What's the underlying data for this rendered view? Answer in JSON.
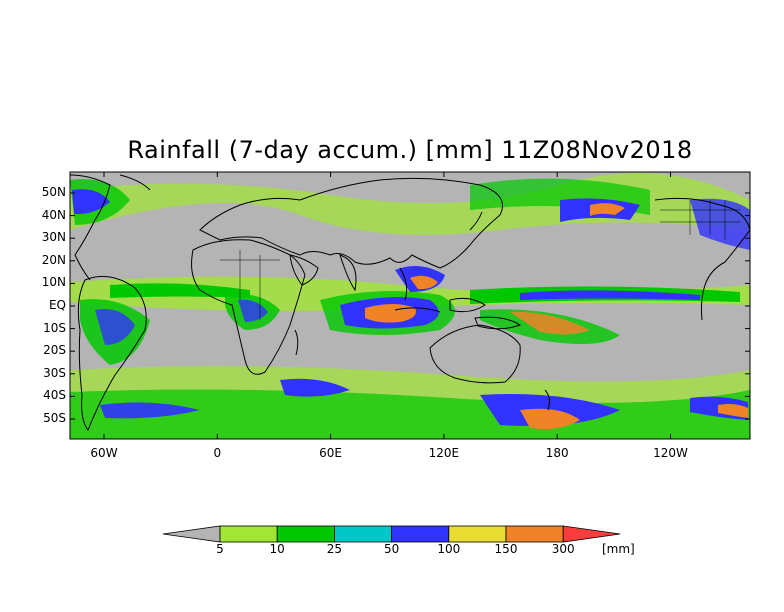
{
  "title": "Rainfall (7-day accum.) [mm] 11Z08Nov2018",
  "lat_labels": [
    "50N",
    "40N",
    "30N",
    "20N",
    "10N",
    "EQ",
    "10S",
    "20S",
    "30S",
    "40S",
    "50S"
  ],
  "lon_labels": [
    "60W",
    "0",
    "60E",
    "120E",
    "180",
    "120W"
  ],
  "colorbar": {
    "unit": "[mm]",
    "ticks": [
      "5",
      "10",
      "25",
      "50",
      "100",
      "150",
      "300"
    ],
    "colors": [
      "#b4b4b4",
      "#a0e632",
      "#00c800",
      "#00c8c8",
      "#3232ff",
      "#e6dc32",
      "#f08228",
      "#fa3c3c"
    ]
  },
  "colors": {
    "background_no_rain": "#b4b4b4",
    "coastline": "#000000"
  }
}
